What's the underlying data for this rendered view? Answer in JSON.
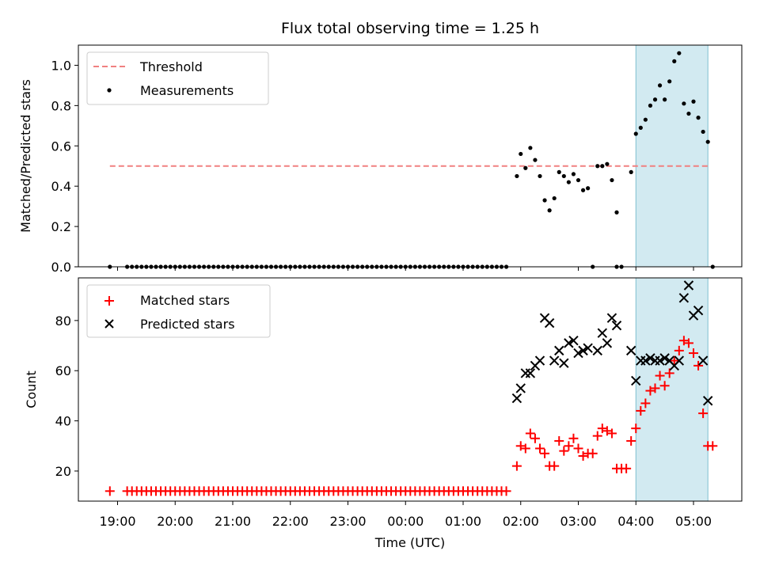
{
  "chart_data": {
    "type": "scatter",
    "title": "Flux total observing time = 1.25 h",
    "xlabel": "Time (UTC)",
    "x_tick_labels": [
      "19:00",
      "20:00",
      "21:00",
      "22:00",
      "23:00",
      "00:00",
      "01:00",
      "02:00",
      "03:00",
      "04:00",
      "05:00"
    ],
    "highlight_span": {
      "start": "04:00",
      "end": "05:15",
      "color": "#add8e6"
    },
    "top": {
      "ylabel": "Matched/Predicted stars",
      "ylim": [
        0,
        1.1
      ],
      "y_ticks": [
        0,
        0.2,
        0.4,
        0.6,
        0.8,
        1.0
      ],
      "y_tick_labels": [
        "0.0",
        "0.2",
        "0.4",
        "0.6",
        "0.8",
        "1.0"
      ],
      "legend": {
        "position": "top-left",
        "threshold_label": "Threshold",
        "measurements_label": "Measurements"
      },
      "threshold": {
        "value": 0.5,
        "x_start": "18:52",
        "x_end": "05:15",
        "color": "#f08080"
      },
      "measurements": {
        "zero_points": [
          "18:52",
          "19:10",
          "19:15",
          "19:20",
          "19:25",
          "19:30",
          "19:35",
          "19:40",
          "19:45",
          "19:50",
          "19:55",
          "20:00",
          "20:05",
          "20:10",
          "20:15",
          "20:20",
          "20:25",
          "20:30",
          "20:35",
          "20:40",
          "20:45",
          "20:50",
          "20:55",
          "21:00",
          "21:05",
          "21:10",
          "21:15",
          "21:20",
          "21:25",
          "21:30",
          "21:35",
          "21:40",
          "21:45",
          "21:50",
          "21:55",
          "22:00",
          "22:05",
          "22:10",
          "22:15",
          "22:20",
          "22:25",
          "22:30",
          "22:35",
          "22:40",
          "22:45",
          "22:50",
          "22:55",
          "23:00",
          "23:05",
          "23:10",
          "23:15",
          "23:20",
          "23:25",
          "23:30",
          "23:35",
          "23:40",
          "23:45",
          "23:50",
          "23:55",
          "00:00",
          "00:05",
          "00:10",
          "00:15",
          "00:20",
          "00:25",
          "00:30",
          "00:35",
          "00:40",
          "00:45",
          "00:50",
          "00:55",
          "01:00",
          "01:05",
          "01:10",
          "01:15",
          "01:20",
          "01:25",
          "01:30",
          "01:35",
          "01:40",
          "01:45",
          "03:15",
          "03:40",
          "03:45",
          "05:20"
        ],
        "points": [
          {
            "t": "01:56",
            "v": 0.45
          },
          {
            "t": "02:00",
            "v": 0.56
          },
          {
            "t": "02:05",
            "v": 0.49
          },
          {
            "t": "02:10",
            "v": 0.59
          },
          {
            "t": "02:15",
            "v": 0.53
          },
          {
            "t": "02:20",
            "v": 0.45
          },
          {
            "t": "02:25",
            "v": 0.33
          },
          {
            "t": "02:30",
            "v": 0.28
          },
          {
            "t": "02:35",
            "v": 0.34
          },
          {
            "t": "02:40",
            "v": 0.47
          },
          {
            "t": "02:45",
            "v": 0.45
          },
          {
            "t": "02:50",
            "v": 0.42
          },
          {
            "t": "02:55",
            "v": 0.46
          },
          {
            "t": "03:00",
            "v": 0.43
          },
          {
            "t": "03:05",
            "v": 0.38
          },
          {
            "t": "03:10",
            "v": 0.39
          },
          {
            "t": "03:20",
            "v": 0.5
          },
          {
            "t": "03:25",
            "v": 0.5
          },
          {
            "t": "03:30",
            "v": 0.51
          },
          {
            "t": "03:35",
            "v": 0.43
          },
          {
            "t": "03:40",
            "v": 0.27
          },
          {
            "t": "03:55",
            "v": 0.47
          },
          {
            "t": "04:00",
            "v": 0.66
          },
          {
            "t": "04:05",
            "v": 0.69
          },
          {
            "t": "04:10",
            "v": 0.73
          },
          {
            "t": "04:15",
            "v": 0.8
          },
          {
            "t": "04:20",
            "v": 0.83
          },
          {
            "t": "04:25",
            "v": 0.9
          },
          {
            "t": "04:30",
            "v": 0.83
          },
          {
            "t": "04:35",
            "v": 0.92
          },
          {
            "t": "04:40",
            "v": 1.02
          },
          {
            "t": "04:45",
            "v": 1.06
          },
          {
            "t": "04:50",
            "v": 0.81
          },
          {
            "t": "04:55",
            "v": 0.76
          },
          {
            "t": "05:00",
            "v": 0.82
          },
          {
            "t": "05:05",
            "v": 0.74
          },
          {
            "t": "05:10",
            "v": 0.67
          },
          {
            "t": "05:15",
            "v": 0.62
          }
        ]
      }
    },
    "bottom": {
      "ylabel": "Count",
      "ylim": [
        8,
        97
      ],
      "y_ticks": [
        20,
        40,
        60,
        80
      ],
      "y_tick_labels": [
        "20",
        "40",
        "60",
        "80"
      ],
      "legend": {
        "position": "top-left",
        "matched_label": "Matched stars",
        "predicted_label": "Predicted stars"
      },
      "matched": {
        "constant_value": 12,
        "constant_times": [
          "18:52",
          "19:10",
          "19:15",
          "19:20",
          "19:25",
          "19:30",
          "19:35",
          "19:40",
          "19:45",
          "19:50",
          "19:55",
          "20:00",
          "20:05",
          "20:10",
          "20:15",
          "20:20",
          "20:25",
          "20:30",
          "20:35",
          "20:40",
          "20:45",
          "20:50",
          "20:55",
          "21:00",
          "21:05",
          "21:10",
          "21:15",
          "21:20",
          "21:25",
          "21:30",
          "21:35",
          "21:40",
          "21:45",
          "21:50",
          "21:55",
          "22:00",
          "22:05",
          "22:10",
          "22:15",
          "22:20",
          "22:25",
          "22:30",
          "22:35",
          "22:40",
          "22:45",
          "22:50",
          "22:55",
          "23:00",
          "23:05",
          "23:10",
          "23:15",
          "23:20",
          "23:25",
          "23:30",
          "23:35",
          "23:40",
          "23:45",
          "23:50",
          "23:55",
          "00:00",
          "00:05",
          "00:10",
          "00:15",
          "00:20",
          "00:25",
          "00:30",
          "00:35",
          "00:40",
          "00:45",
          "00:50",
          "00:55",
          "01:00",
          "01:05",
          "01:10",
          "01:15",
          "01:20",
          "01:25",
          "01:30",
          "01:35",
          "01:40",
          "01:45"
        ],
        "points": [
          {
            "t": "01:56",
            "v": 22
          },
          {
            "t": "02:00",
            "v": 30
          },
          {
            "t": "02:05",
            "v": 29
          },
          {
            "t": "02:10",
            "v": 35
          },
          {
            "t": "02:15",
            "v": 33
          },
          {
            "t": "02:20",
            "v": 29
          },
          {
            "t": "02:25",
            "v": 27
          },
          {
            "t": "02:30",
            "v": 22
          },
          {
            "t": "02:35",
            "v": 22
          },
          {
            "t": "02:40",
            "v": 32
          },
          {
            "t": "02:45",
            "v": 28
          },
          {
            "t": "02:50",
            "v": 30
          },
          {
            "t": "02:55",
            "v": 33
          },
          {
            "t": "03:00",
            "v": 29
          },
          {
            "t": "03:05",
            "v": 26
          },
          {
            "t": "03:10",
            "v": 27
          },
          {
            "t": "03:15",
            "v": 27
          },
          {
            "t": "03:20",
            "v": 34
          },
          {
            "t": "03:25",
            "v": 37
          },
          {
            "t": "03:30",
            "v": 36
          },
          {
            "t": "03:35",
            "v": 35
          },
          {
            "t": "03:40",
            "v": 21
          },
          {
            "t": "03:45",
            "v": 21
          },
          {
            "t": "03:50",
            "v": 21
          },
          {
            "t": "03:55",
            "v": 32
          },
          {
            "t": "04:00",
            "v": 37
          },
          {
            "t": "04:05",
            "v": 44
          },
          {
            "t": "04:10",
            "v": 47
          },
          {
            "t": "04:15",
            "v": 52
          },
          {
            "t": "04:20",
            "v": 53
          },
          {
            "t": "04:25",
            "v": 58
          },
          {
            "t": "04:30",
            "v": 54
          },
          {
            "t": "04:35",
            "v": 59
          },
          {
            "t": "04:40",
            "v": 64
          },
          {
            "t": "04:45",
            "v": 68
          },
          {
            "t": "04:50",
            "v": 72
          },
          {
            "t": "04:55",
            "v": 71
          },
          {
            "t": "05:00",
            "v": 67
          },
          {
            "t": "05:05",
            "v": 62
          },
          {
            "t": "05:10",
            "v": 43
          },
          {
            "t": "05:15",
            "v": 30
          },
          {
            "t": "05:20",
            "v": 30
          }
        ]
      },
      "predicted": {
        "points": [
          {
            "t": "01:56",
            "v": 49
          },
          {
            "t": "02:00",
            "v": 53
          },
          {
            "t": "02:05",
            "v": 59
          },
          {
            "t": "02:10",
            "v": 59
          },
          {
            "t": "02:15",
            "v": 62
          },
          {
            "t": "02:20",
            "v": 64
          },
          {
            "t": "02:25",
            "v": 81
          },
          {
            "t": "02:30",
            "v": 79
          },
          {
            "t": "02:35",
            "v": 64
          },
          {
            "t": "02:40",
            "v": 68
          },
          {
            "t": "02:45",
            "v": 63
          },
          {
            "t": "02:50",
            "v": 71
          },
          {
            "t": "02:55",
            "v": 72
          },
          {
            "t": "03:00",
            "v": 67
          },
          {
            "t": "03:05",
            "v": 68
          },
          {
            "t": "03:10",
            "v": 69
          },
          {
            "t": "03:20",
            "v": 68
          },
          {
            "t": "03:25",
            "v": 75
          },
          {
            "t": "03:30",
            "v": 71
          },
          {
            "t": "03:35",
            "v": 81
          },
          {
            "t": "03:40",
            "v": 78
          },
          {
            "t": "03:55",
            "v": 68
          },
          {
            "t": "04:00",
            "v": 56
          },
          {
            "t": "04:05",
            "v": 64
          },
          {
            "t": "04:10",
            "v": 64
          },
          {
            "t": "04:15",
            "v": 65
          },
          {
            "t": "04:20",
            "v": 64
          },
          {
            "t": "04:25",
            "v": 64
          },
          {
            "t": "04:30",
            "v": 65
          },
          {
            "t": "04:35",
            "v": 64
          },
          {
            "t": "04:40",
            "v": 62
          },
          {
            "t": "04:45",
            "v": 64
          },
          {
            "t": "04:50",
            "v": 89
          },
          {
            "t": "04:55",
            "v": 94
          },
          {
            "t": "05:00",
            "v": 82
          },
          {
            "t": "05:05",
            "v": 84
          },
          {
            "t": "05:10",
            "v": 64
          },
          {
            "t": "05:15",
            "v": 48
          }
        ]
      }
    }
  }
}
